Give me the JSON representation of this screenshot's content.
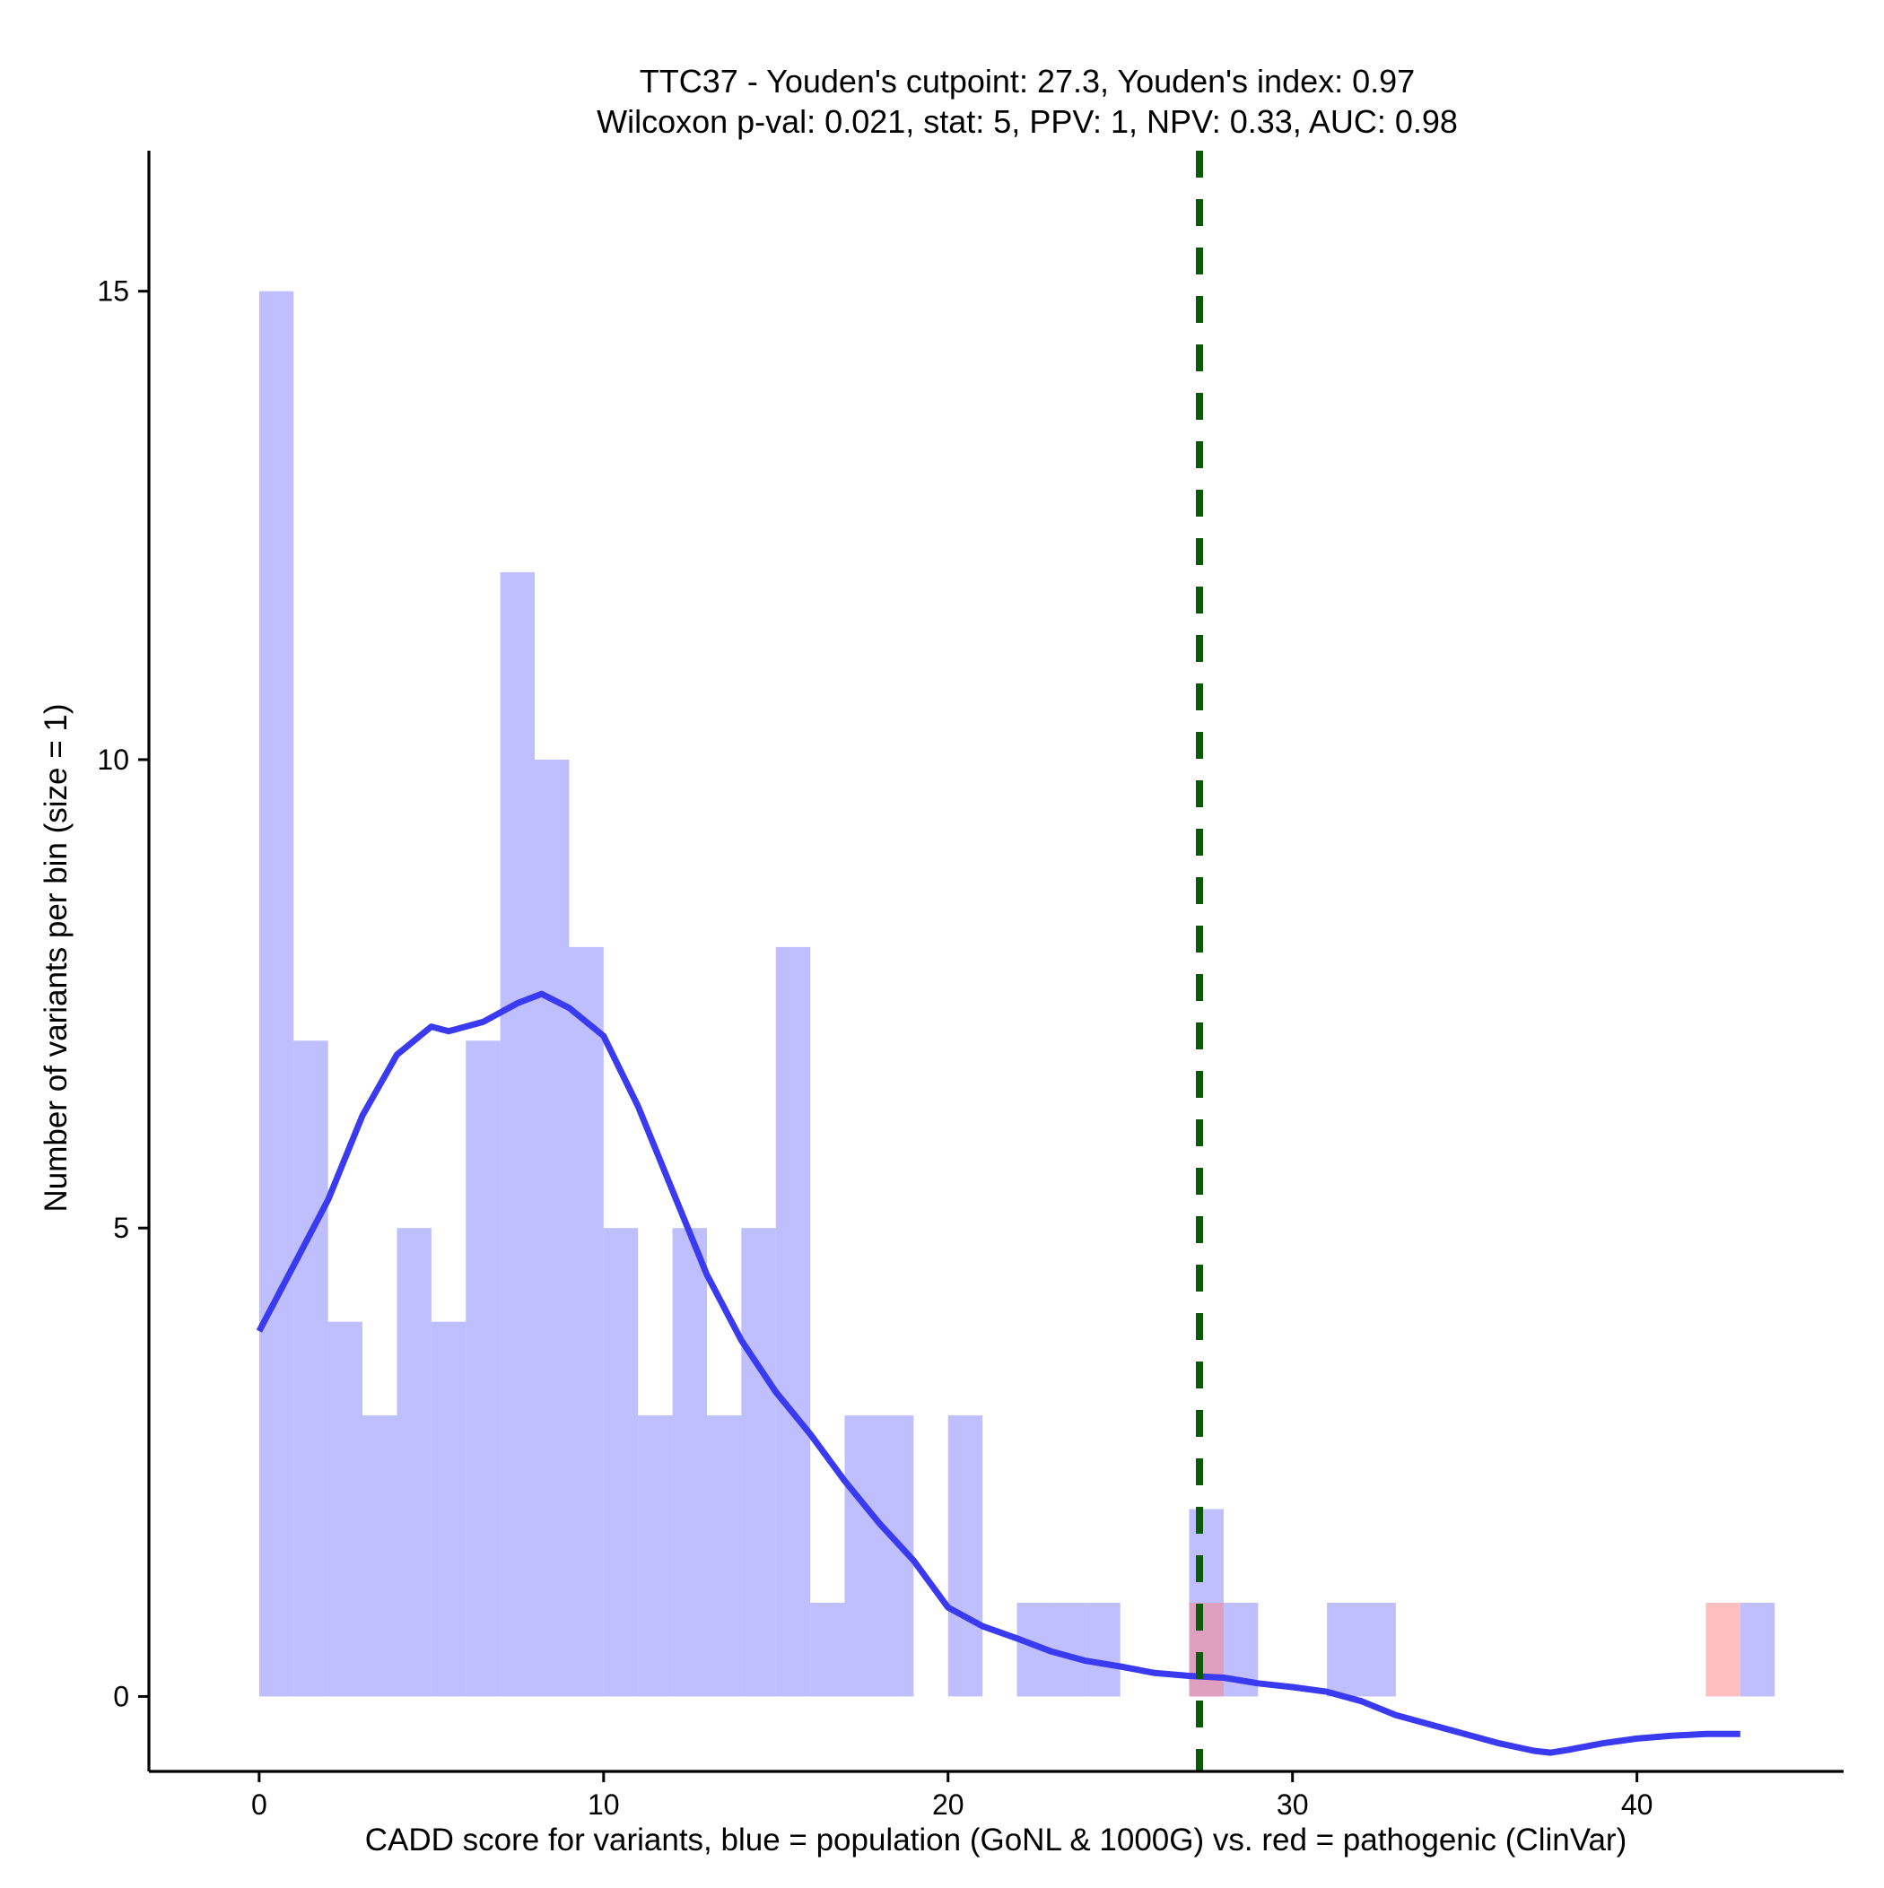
{
  "chart_data": {
    "type": "bar",
    "title": "TTC37 - Youden's cutpoint: 27.3, Youden's index: 0.97",
    "subtitle": "Wilcoxon p-val: 0.021, stat: 5, PPV: 1, NPV: 0.33, AUC: 0.98",
    "xlabel": "CADD score for variants, blue = population (GoNL & 1000G) vs. red = pathogenic (ClinVar)",
    "ylabel": "Number of variants per bin (size = 1)",
    "xlim": [
      -3.2,
      46
    ],
    "ylim": [
      -0.8,
      16.5
    ],
    "x_ticks": [
      0,
      10,
      20,
      30,
      40
    ],
    "x_tick_labels": [
      "0",
      "10",
      "20",
      "30",
      "40"
    ],
    "y_ticks": [
      0,
      5,
      10,
      15
    ],
    "y_tick_labels": [
      "0",
      "5",
      "10",
      "15"
    ],
    "bin_width": 1,
    "grid": false,
    "legend": "none",
    "series": [
      {
        "kind": "histogram",
        "color": "#8080ff",
        "opacity": 0.5,
        "bins": [
          {
            "x": 0,
            "count": 15
          },
          {
            "x": 1,
            "count": 7
          },
          {
            "x": 2,
            "count": 4
          },
          {
            "x": 3,
            "count": 3
          },
          {
            "x": 4,
            "count": 5
          },
          {
            "x": 5,
            "count": 4
          },
          {
            "x": 6,
            "count": 7
          },
          {
            "x": 7,
            "count": 12
          },
          {
            "x": 8,
            "count": 10
          },
          {
            "x": 9,
            "count": 8
          },
          {
            "x": 10,
            "count": 5
          },
          {
            "x": 11,
            "count": 3
          },
          {
            "x": 12,
            "count": 5
          },
          {
            "x": 13,
            "count": 3
          },
          {
            "x": 14,
            "count": 5
          },
          {
            "x": 15,
            "count": 8
          },
          {
            "x": 16,
            "count": 1
          },
          {
            "x": 17,
            "count": 3
          },
          {
            "x": 18,
            "count": 3
          },
          {
            "x": 20,
            "count": 3
          },
          {
            "x": 22,
            "count": 1
          },
          {
            "x": 23,
            "count": 1
          },
          {
            "x": 24,
            "count": 1
          },
          {
            "x": 27,
            "count": 2
          },
          {
            "x": 28,
            "count": 1
          },
          {
            "x": 31,
            "count": 1
          },
          {
            "x": 32,
            "count": 1
          },
          {
            "x": 43,
            "count": 1
          }
        ]
      },
      {
        "kind": "histogram",
        "color": "#ff8080",
        "opacity": 0.5,
        "bins": [
          {
            "x": 27,
            "count": 1
          },
          {
            "x": 42,
            "count": 1
          }
        ]
      },
      {
        "kind": "density-line",
        "color": "#3a3af0",
        "points": [
          [
            0,
            3.9
          ],
          [
            1,
            4.6
          ],
          [
            2,
            5.3
          ],
          [
            3,
            6.2
          ],
          [
            4,
            6.85
          ],
          [
            5,
            7.15
          ],
          [
            5.5,
            7.1
          ],
          [
            6.5,
            7.2
          ],
          [
            7.5,
            7.4
          ],
          [
            8.2,
            7.5
          ],
          [
            9,
            7.35
          ],
          [
            10,
            7.05
          ],
          [
            11,
            6.3
          ],
          [
            12,
            5.4
          ],
          [
            13,
            4.5
          ],
          [
            14,
            3.8
          ],
          [
            15,
            3.25
          ],
          [
            16,
            2.8
          ],
          [
            17,
            2.3
          ],
          [
            18,
            1.85
          ],
          [
            19,
            1.45
          ],
          [
            20,
            0.95
          ],
          [
            21,
            0.75
          ],
          [
            22,
            0.62
          ],
          [
            23,
            0.48
          ],
          [
            24,
            0.38
          ],
          [
            25,
            0.32
          ],
          [
            26,
            0.25
          ],
          [
            27,
            0.22
          ],
          [
            28,
            0.2
          ],
          [
            29,
            0.14
          ],
          [
            30,
            0.1
          ],
          [
            31,
            0.05
          ],
          [
            32,
            -0.05
          ],
          [
            33,
            -0.2
          ],
          [
            34,
            -0.3
          ],
          [
            35,
            -0.4
          ],
          [
            36,
            -0.5
          ],
          [
            37,
            -0.58
          ],
          [
            37.5,
            -0.6
          ],
          [
            38,
            -0.57
          ],
          [
            39,
            -0.5
          ],
          [
            40,
            -0.45
          ],
          [
            41,
            -0.42
          ],
          [
            42,
            -0.4
          ],
          [
            43,
            -0.4
          ]
        ]
      }
    ],
    "cutpoint": {
      "x": 27.3,
      "color": "#0a5a0a",
      "style": "dashed"
    }
  }
}
